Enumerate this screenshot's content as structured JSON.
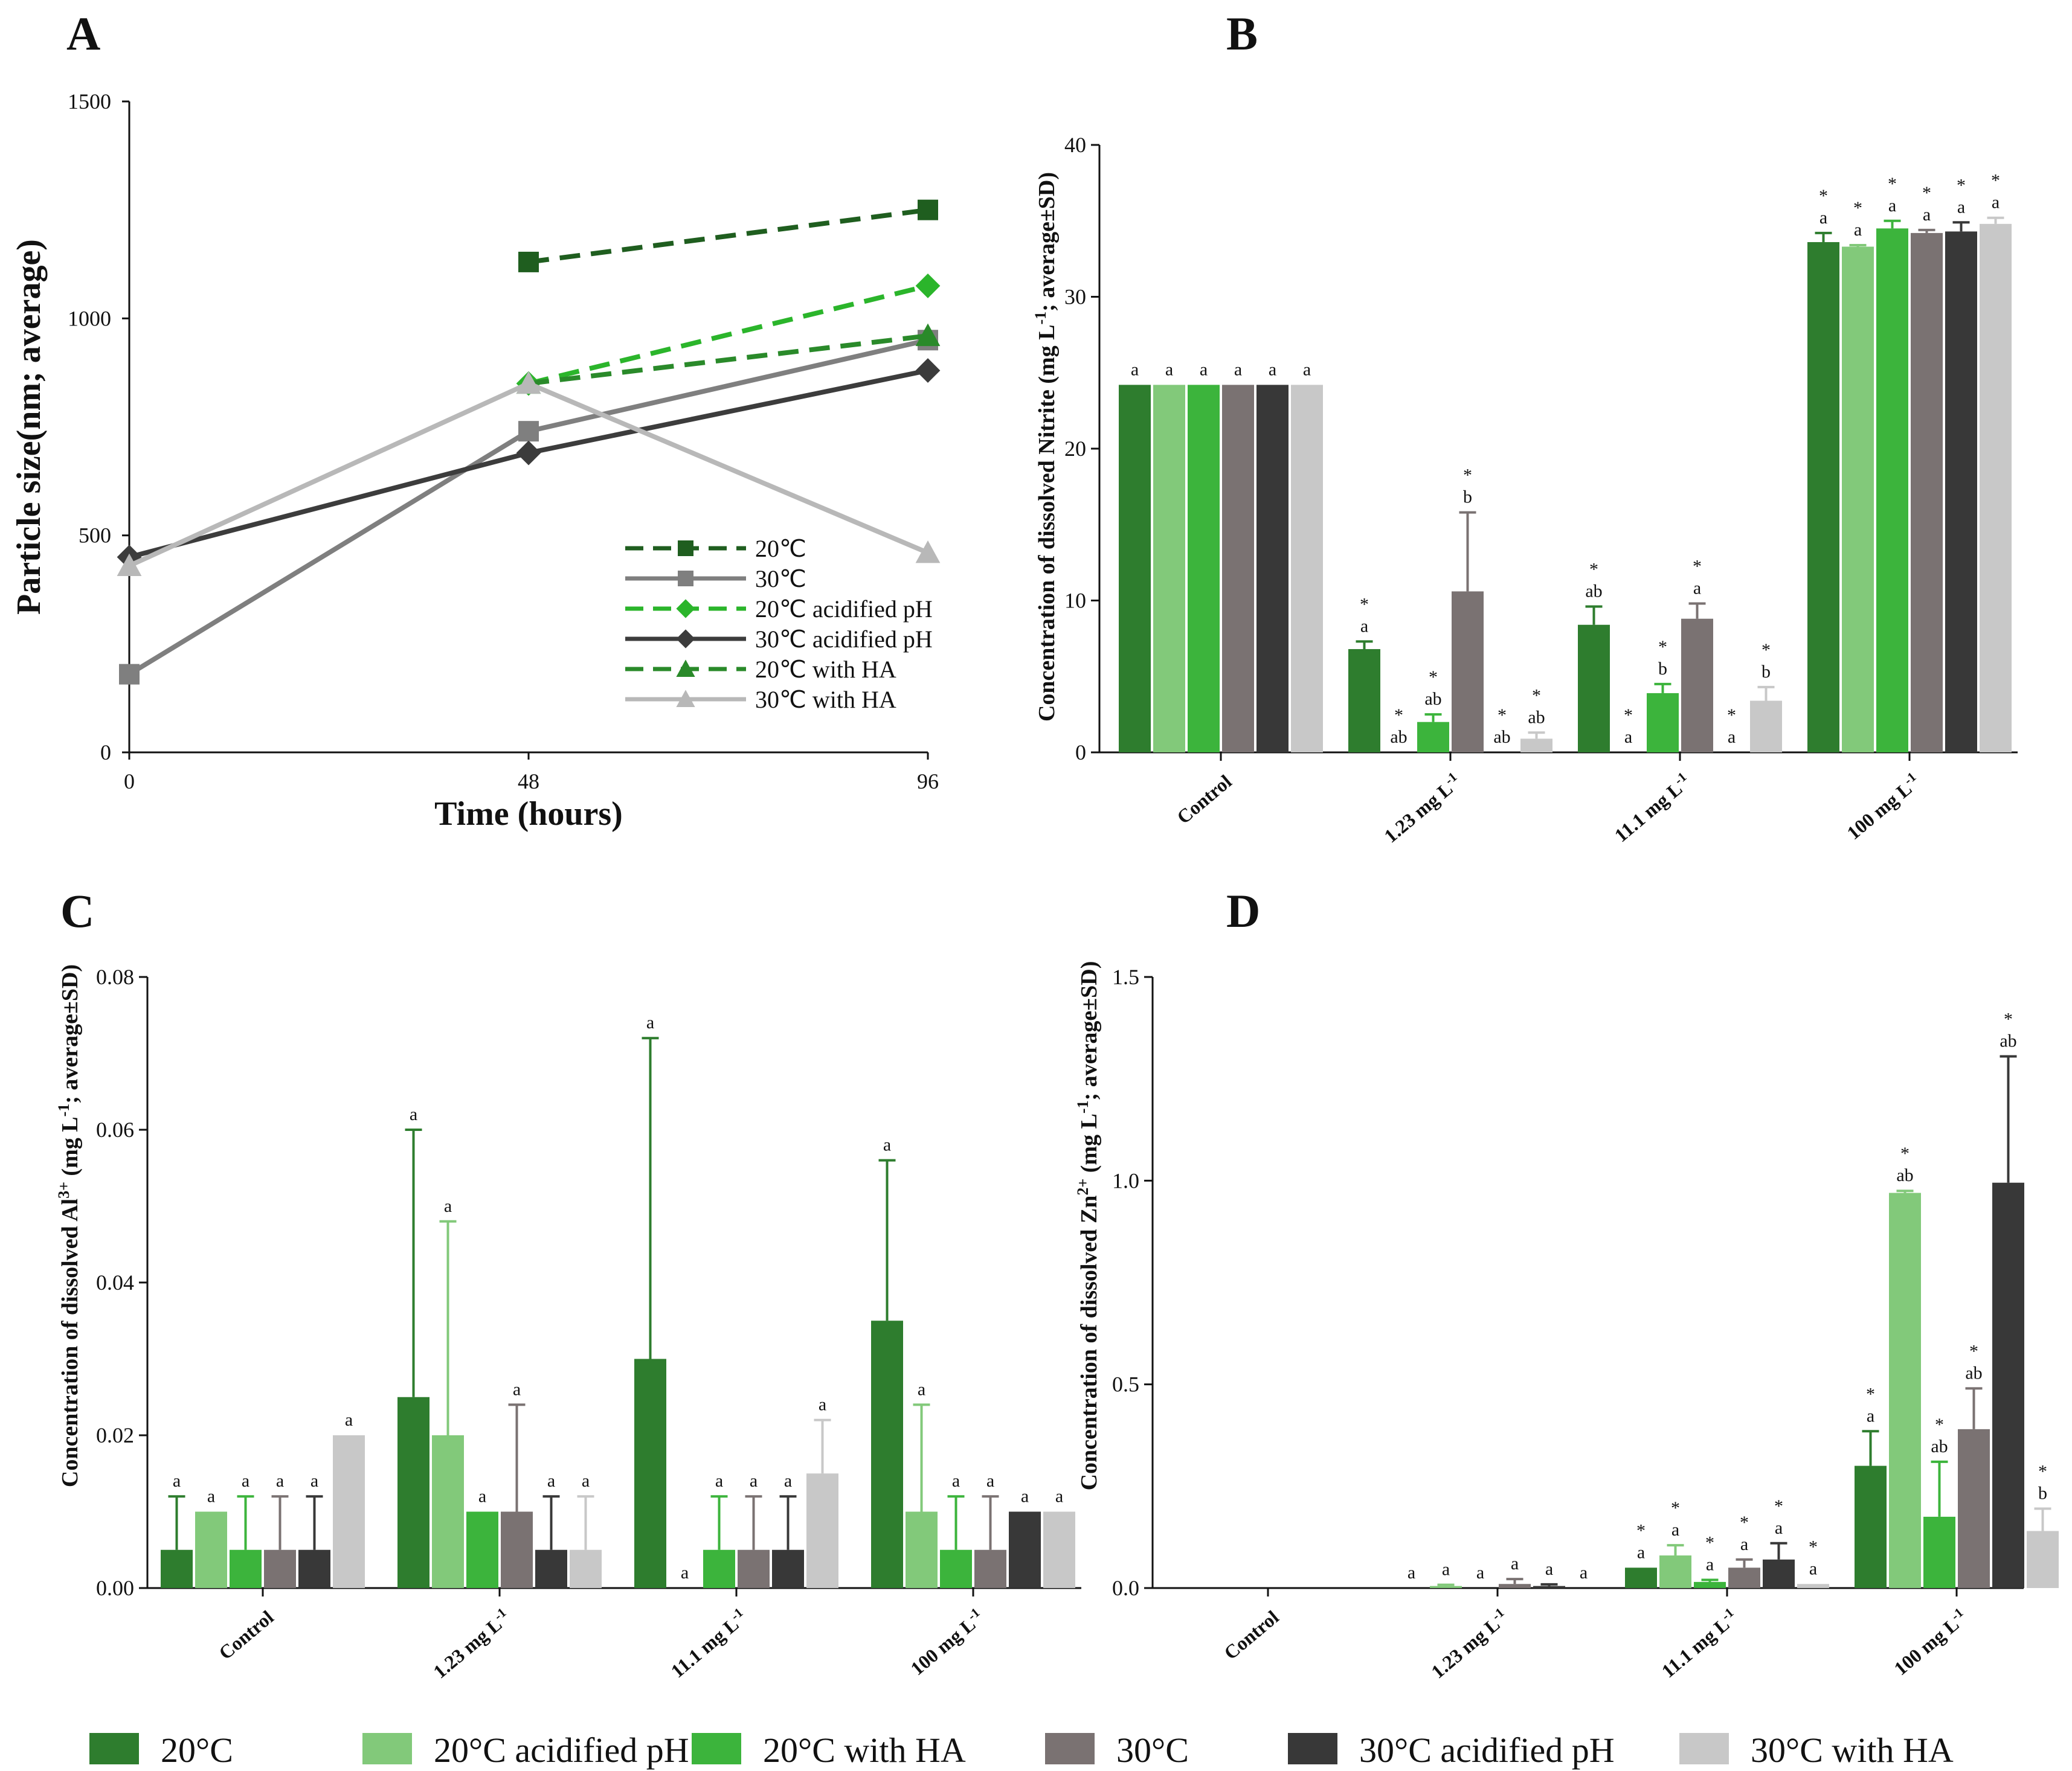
{
  "panels": {
    "A": "A",
    "B": "B",
    "C": "C",
    "D": "D"
  },
  "colors": {
    "s20": "#2e7d2e",
    "s20ap": "#82c97a",
    "s20ha": "#3cb43c",
    "s30": "#7a7272",
    "s30ap": "#383838",
    "s30ha": "#c8c8c8",
    "lineA_20": "#1f5e1f",
    "lineA_30": "#7f7f7f",
    "lineA_20ap": "#2bb52b",
    "lineA_30ap": "#3c3c3c",
    "lineA_20ha": "#2a8a2a",
    "lineA_30ha": "#b8b8b8"
  },
  "legend_bottom": [
    {
      "label": "20°C",
      "color": "#2e7d2e"
    },
    {
      "label": "20°C acidified pH",
      "color": "#82c97a"
    },
    {
      "label": "20°C with HA",
      "color": "#3cb43c"
    },
    {
      "label": "30°C",
      "color": "#7a7272"
    },
    {
      "label": "30°C  acidified pH",
      "color": "#383838"
    },
    {
      "label": "30°C with HA",
      "color": "#c8c8c8"
    }
  ],
  "chart_data": [
    {
      "panel": "A",
      "type": "line",
      "xlabel": "Time (hours)",
      "ylabel": "Particle size(nm; average)",
      "x": [
        0,
        48,
        96
      ],
      "xticks": [
        "0",
        "48",
        "96"
      ],
      "ylim": [
        0,
        1500
      ],
      "yticks": [
        "0",
        "500",
        "1000",
        "1500"
      ],
      "legend_position": "bottom-right",
      "series": [
        {
          "name": "20℃",
          "values": [
            null,
            1130,
            1250
          ],
          "dash": true,
          "marker": "square",
          "color": "#1f5e1f"
        },
        {
          "name": "30℃",
          "values": [
            180,
            740,
            950
          ],
          "dash": false,
          "marker": "square",
          "color": "#7f7f7f"
        },
        {
          "name": "20℃ acidified pH",
          "values": [
            null,
            850,
            1075
          ],
          "dash": true,
          "marker": "diamond",
          "color": "#2bb52b"
        },
        {
          "name": "30℃ acidified pH",
          "values": [
            450,
            690,
            880
          ],
          "dash": false,
          "marker": "diamond",
          "color": "#3c3c3c"
        },
        {
          "name": "20℃ with HA",
          "values": [
            null,
            850,
            960
          ],
          "dash": true,
          "marker": "triangle",
          "color": "#2a8a2a"
        },
        {
          "name": "30℃ with HA",
          "values": [
            430,
            850,
            460
          ],
          "dash": false,
          "marker": "triangle",
          "color": "#b8b8b8"
        }
      ]
    },
    {
      "panel": "B",
      "type": "bar",
      "ylabel_pre": "Concentration of dissolved Nitrite (mg L",
      "ylabel_sup": "-1",
      "ylabel_post": "; average±SD)",
      "ylim": [
        0,
        40
      ],
      "yticks": [
        "0",
        "10",
        "20",
        "30",
        "40"
      ],
      "categories": [
        "Control",
        "1.23 mg L",
        "11.1 mg L",
        "100 mg L"
      ],
      "category_sup": [
        "",
        "-1",
        "-1",
        "-1"
      ],
      "series_values": [
        [
          24.2,
          24.2,
          24.2,
          24.2,
          24.2,
          24.2
        ],
        [
          6.8,
          0,
          2.0,
          10.6,
          0,
          0.9
        ],
        [
          8.4,
          0,
          3.9,
          8.8,
          0,
          3.4
        ],
        [
          33.6,
          33.3,
          34.5,
          34.2,
          34.3,
          34.8
        ]
      ],
      "errors": [
        [
          0,
          0,
          0,
          0,
          0,
          0
        ],
        [
          0.5,
          0,
          0.5,
          5.2,
          0,
          0.4
        ],
        [
          1.2,
          0,
          0.6,
          1.0,
          0,
          0.9
        ],
        [
          0.6,
          0.1,
          0.5,
          0.2,
          0.6,
          0.4
        ]
      ],
      "letters": [
        [
          "a",
          "a",
          "a",
          "a",
          "a",
          "a"
        ],
        [
          "a",
          "ab",
          "ab",
          "b",
          "ab",
          "ab"
        ],
        [
          "ab",
          "a",
          "b",
          "a",
          "a",
          "b"
        ],
        [
          "a",
          "a",
          "a",
          "a",
          "a",
          "a"
        ]
      ],
      "stars": [
        [
          false,
          false,
          false,
          false,
          false,
          false
        ],
        [
          true,
          true,
          true,
          true,
          true,
          true
        ],
        [
          true,
          true,
          true,
          true,
          true,
          true
        ],
        [
          true,
          true,
          true,
          true,
          true,
          true
        ]
      ]
    },
    {
      "panel": "C",
      "type": "bar",
      "ylabel_pre": "Concentration of dissolved Al",
      "ylabel_sup": "3+",
      "ylabel_mid": " (mg L",
      "ylabel_sup2": "-1",
      "ylabel_post": "; average±SD)",
      "ylim": [
        0,
        0.08
      ],
      "yticks": [
        "0.00",
        "0.02",
        "0.04",
        "0.06",
        "0.08"
      ],
      "categories": [
        "Control",
        "1.23 mg L",
        "11.1 mg L",
        "100 mg L"
      ],
      "category_sup": [
        "",
        "-1",
        "-1",
        "-1"
      ],
      "series_values": [
        [
          0.005,
          0.01,
          0.005,
          0.005,
          0.005,
          0.02
        ],
        [
          0.025,
          0.02,
          0.01,
          0.01,
          0.005,
          0.005
        ],
        [
          0.03,
          0,
          0.005,
          0.005,
          0.005,
          0.015
        ],
        [
          0.035,
          0.01,
          0.005,
          0.005,
          0.01,
          0.01
        ]
      ],
      "errors": [
        [
          0.007,
          0,
          0.007,
          0.007,
          0.007,
          0
        ],
        [
          0.035,
          0.028,
          0,
          0.014,
          0.007,
          0.007
        ],
        [
          0.042,
          0,
          0.007,
          0.007,
          0.007,
          0.007
        ],
        [
          0.021,
          0.014,
          0.007,
          0.007,
          0,
          0
        ]
      ],
      "letters": [
        [
          "a",
          "a",
          "a",
          "a",
          "a",
          "a"
        ],
        [
          "a",
          "a",
          "a",
          "a",
          "a",
          "a"
        ],
        [
          "a",
          "a",
          "a",
          "a",
          "a",
          "a"
        ],
        [
          "a",
          "a",
          "a",
          "a",
          "a",
          "a"
        ]
      ],
      "stars": [
        [
          false,
          false,
          false,
          false,
          false,
          false
        ],
        [
          false,
          false,
          false,
          false,
          false,
          false
        ],
        [
          false,
          false,
          false,
          false,
          false,
          false
        ],
        [
          false,
          false,
          false,
          false,
          false,
          false
        ]
      ]
    },
    {
      "panel": "D",
      "type": "bar",
      "ylabel_pre": "Concentration of dissolved Zn",
      "ylabel_sup": "2+",
      "ylabel_mid": " (mg L",
      "ylabel_sup2": "-1",
      "ylabel_post": "; average±SD)",
      "ylim": [
        0,
        1.5
      ],
      "yticks": [
        "0.0",
        "0.5",
        "1.0",
        "1.5"
      ],
      "categories": [
        "Control",
        "1.23 mg L",
        "11.1 mg L",
        "100 mg L"
      ],
      "category_sup": [
        "",
        "-1",
        "-1",
        "-1"
      ],
      "series_values": [
        [
          0,
          0,
          0,
          0,
          0,
          0
        ],
        [
          0,
          0.005,
          0,
          0.01,
          0.005,
          0
        ],
        [
          0.05,
          0.08,
          0.015,
          0.05,
          0.07,
          0.01
        ],
        [
          0.3,
          0.97,
          0.175,
          0.39,
          0.995,
          0.14
        ]
      ],
      "errors": [
        [
          0,
          0,
          0,
          0,
          0,
          0
        ],
        [
          0,
          0.003,
          0,
          0.012,
          0.004,
          0
        ],
        [
          0,
          0.025,
          0.005,
          0.02,
          0.04,
          0
        ],
        [
          0.085,
          0.005,
          0.135,
          0.1,
          0.31,
          0.055
        ]
      ],
      "letters": [
        [
          "",
          "",
          "",
          "",
          "",
          ""
        ],
        [
          "a",
          "a",
          "a",
          "a",
          "a",
          "a"
        ],
        [
          "a",
          "a",
          "a",
          "a",
          "a",
          "a"
        ],
        [
          "a",
          "ab",
          "ab",
          "ab",
          "ab",
          "b"
        ]
      ],
      "stars": [
        [
          false,
          false,
          false,
          false,
          false,
          false
        ],
        [
          false,
          false,
          false,
          false,
          false,
          false
        ],
        [
          true,
          true,
          true,
          true,
          true,
          true
        ],
        [
          true,
          true,
          true,
          true,
          true,
          true
        ]
      ]
    }
  ]
}
